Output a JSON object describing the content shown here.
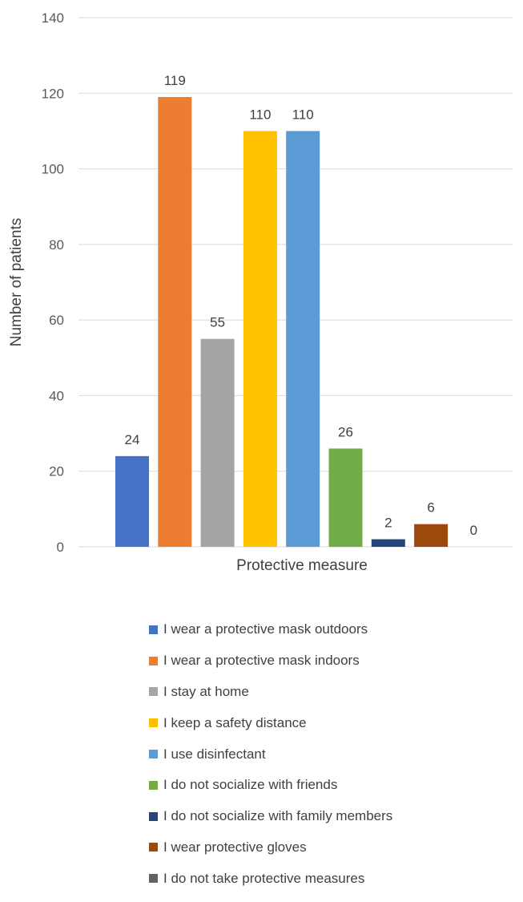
{
  "chart_data": {
    "type": "bar",
    "title": "",
    "xlabel": "Protective measure",
    "ylabel": "Number of patients",
    "ylim": [
      0,
      140
    ],
    "yticks": [
      0,
      20,
      40,
      60,
      80,
      100,
      120,
      140
    ],
    "grid": true,
    "legend_position": "bottom",
    "series": [
      {
        "name": "I wear a protective mask outdoors",
        "value": 24,
        "color": "#4472c4"
      },
      {
        "name": "I wear a protective mask indoors",
        "value": 119,
        "color": "#ed7d31"
      },
      {
        "name": "I stay at home",
        "value": 55,
        "color": "#a5a5a5"
      },
      {
        "name": "I keep a safety distance",
        "value": 110,
        "color": "#ffc000"
      },
      {
        "name": "I use disinfectant",
        "value": 110,
        "color": "#5b9bd5"
      },
      {
        "name": "I do not socialize with friends",
        "value": 26,
        "color": "#70ad47"
      },
      {
        "name": "I do not socialize with family members",
        "value": 2,
        "color": "#264478"
      },
      {
        "name": "I wear protective gloves",
        "value": 6,
        "color": "#9e480e"
      },
      {
        "name": "I do not take protective measures",
        "value": 0,
        "color": "#636363"
      }
    ]
  }
}
